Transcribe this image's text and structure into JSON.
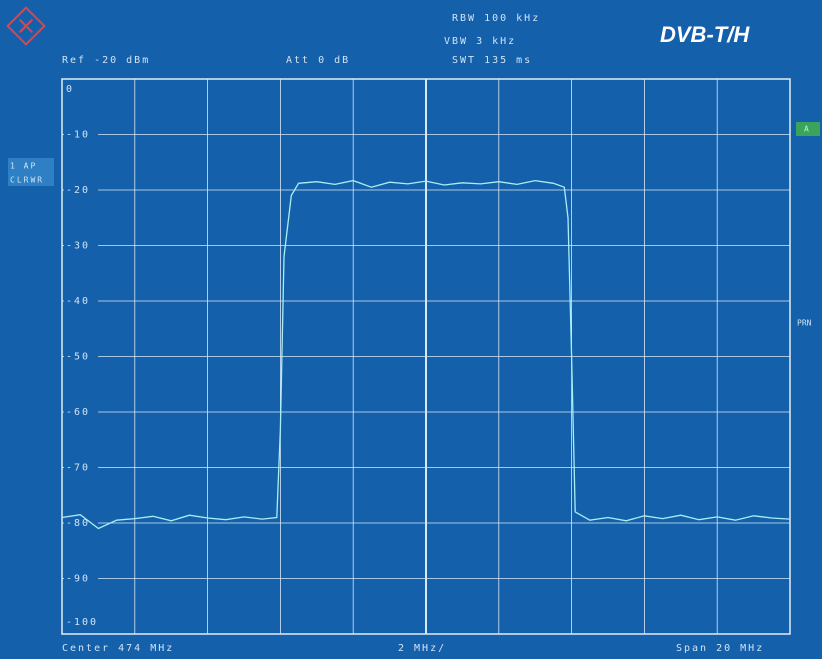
{
  "chart_data": {
    "type": "line",
    "title": "DVB-T/H",
    "header": {
      "rbw": "RBW 100 kHz",
      "vbw": "VBW 3 kHz",
      "swt": "SWT 135 ms",
      "ref": "Ref -20 dBm",
      "att": "Att 0 dB"
    },
    "side_labels": {
      "trace": "1 AP",
      "mode": "CLRWR",
      "marker_a": "A",
      "prn": "PRN"
    },
    "footer": {
      "center": "Center 474 MHz",
      "div": "2 MHz/",
      "span": "Span 20 MHz"
    },
    "x": [
      464,
      464.5,
      465,
      465.5,
      466,
      466.5,
      467,
      467.5,
      468,
      468.5,
      469,
      469.5,
      469.9,
      470.0,
      470.1,
      470.3,
      470.5,
      471,
      471.5,
      472,
      472.5,
      473,
      473.5,
      474,
      474.5,
      475,
      475.5,
      476,
      476.5,
      477,
      477.5,
      477.8,
      477.9,
      478.0,
      478.1,
      478.5,
      479,
      479.5,
      480,
      480.5,
      481,
      481.5,
      482,
      482.5,
      483,
      483.5,
      484
    ],
    "values": [
      -79,
      -78.5,
      -81,
      -79.5,
      -79.2,
      -78.8,
      -79.6,
      -78.6,
      -79.1,
      -79.4,
      -78.9,
      -79.3,
      -79,
      -63,
      -32,
      -21,
      -18.8,
      -18.5,
      -19.0,
      -18.3,
      -19.5,
      -18.6,
      -18.9,
      -18.4,
      -19.1,
      -18.7,
      -18.9,
      -18.5,
      -19.0,
      -18.3,
      -18.8,
      -19.5,
      -25,
      -50,
      -78,
      -79.5,
      -79,
      -79.6,
      -78.7,
      -79.2,
      -78.6,
      -79.4,
      -78.9,
      -79.5,
      -78.7,
      -79.1,
      -79.3
    ],
    "color": "#a8eef4",
    "xlim": [
      464,
      484
    ],
    "xgrid": [
      464,
      466,
      468,
      470,
      472,
      474,
      476,
      478,
      480,
      482,
      484
    ],
    "ylim": [
      -100,
      0
    ],
    "yticks": [
      0,
      -10,
      -20,
      -30,
      -40,
      -50,
      -60,
      -70,
      -80,
      -90,
      -100
    ],
    "grid": true
  }
}
